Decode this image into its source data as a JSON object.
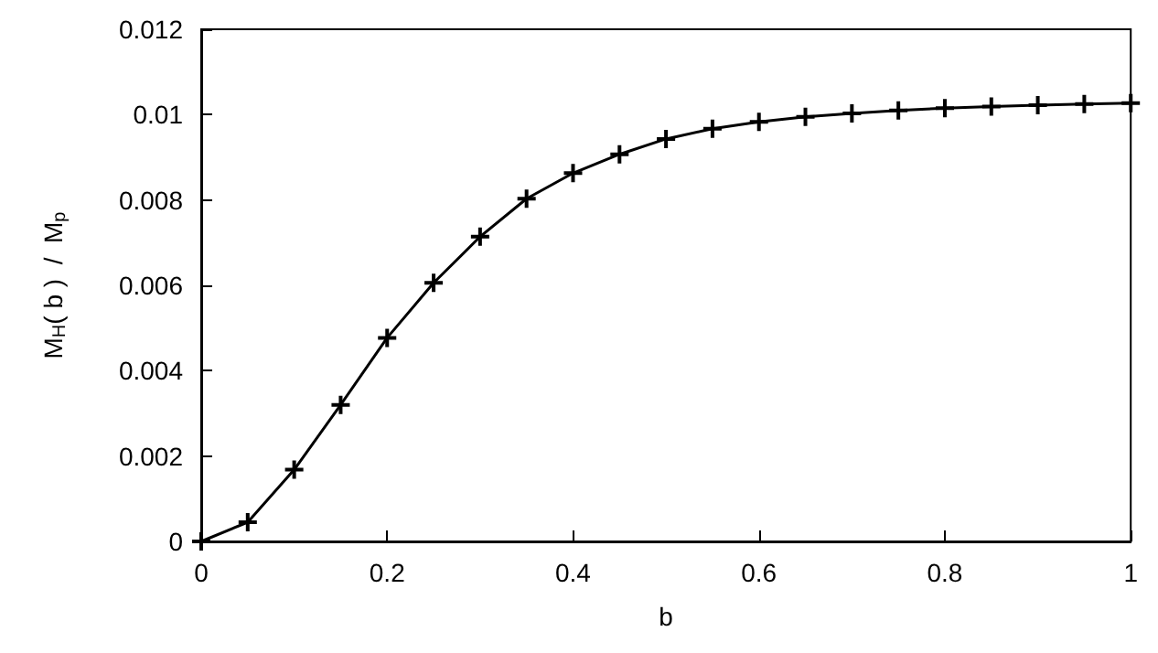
{
  "chart_data": {
    "type": "line",
    "xlabel": "b",
    "ylabel": "M$_{H}$( b )  /  M$_{p}$",
    "x": [
      0,
      0.05,
      0.1,
      0.15,
      0.2,
      0.25,
      0.3,
      0.35,
      0.4,
      0.45,
      0.5,
      0.55,
      0.6,
      0.65,
      0.7,
      0.75,
      0.8,
      0.85,
      0.9,
      0.95,
      1.0
    ],
    "series": [
      {
        "color": "#000000",
        "values": [
          0,
          0.00045,
          0.00168,
          0.0032,
          0.00477,
          0.00606,
          0.00714,
          0.00803,
          0.00863,
          0.00907,
          0.00943,
          0.00967,
          0.00983,
          0.00995,
          0.01003,
          0.0101,
          0.01015,
          0.01019,
          0.01022,
          0.01025,
          0.01027
        ]
      }
    ],
    "xlim": [
      0,
      1
    ],
    "xticks": [
      0,
      0.2,
      0.4,
      0.6,
      0.8,
      1
    ],
    "ylim": [
      0,
      0.012
    ],
    "yticks": [
      0,
      0.002,
      0.004,
      0.006,
      0.008,
      0.01,
      0.012
    ],
    "marker": "cross",
    "line_style": "solid",
    "grid": false
  }
}
